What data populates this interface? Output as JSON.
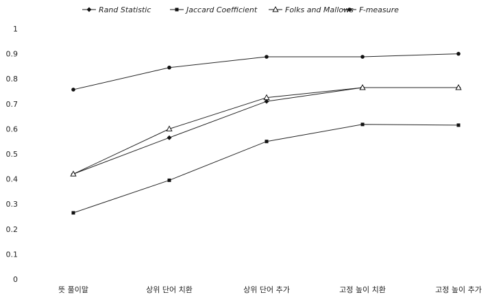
{
  "chart_data": {
    "type": "line",
    "categories": [
      "뜻 풀이말",
      "상위 단어 치환",
      "상위 단어 추가",
      "고정 높이 치환",
      "고정 높이 추가"
    ],
    "ylim": [
      0,
      1
    ],
    "yticks": [
      "0",
      "0.1",
      "0.2",
      "0.3",
      "0.4",
      "0.5",
      "0.6",
      "0.7",
      "0.8",
      "0.9",
      "1"
    ],
    "grid": false,
    "legend_position": "top",
    "series": [
      {
        "name": "Rand Statistic",
        "marker": "diamond",
        "values": [
          0.42,
          0.565,
          0.71,
          0.765,
          0.765
        ]
      },
      {
        "name": "Jaccard Coefficient",
        "marker": "square",
        "values": [
          0.265,
          0.395,
          0.55,
          0.618,
          0.615
        ]
      },
      {
        "name": "Folks and Mallows",
        "marker": "triangle",
        "values": [
          0.42,
          0.6,
          0.725,
          0.765,
          0.765
        ]
      },
      {
        "name": "F-measure",
        "marker": "circle",
        "values": [
          0.757,
          0.845,
          0.888,
          0.888,
          0.9
        ]
      }
    ]
  }
}
